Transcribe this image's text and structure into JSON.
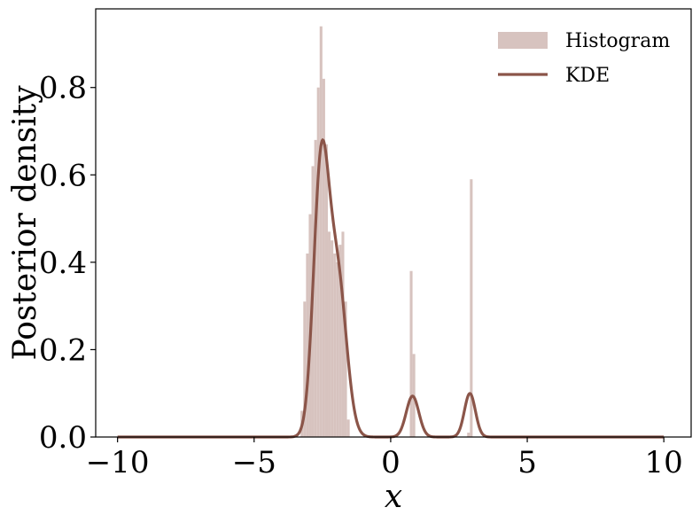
{
  "chart_data": {
    "type": "bar",
    "xlabel": "x",
    "ylabel": "Posterior density",
    "xlim": [
      -10.8,
      11.0
    ],
    "ylim": [
      0.0,
      0.98
    ],
    "xticks": [
      {
        "value": -10,
        "label": "−10"
      },
      {
        "value": -5,
        "label": "−5"
      },
      {
        "value": 0,
        "label": "0"
      },
      {
        "value": 5,
        "label": "5"
      },
      {
        "value": 10,
        "label": "10"
      }
    ],
    "yticks": [
      {
        "value": 0.0,
        "label": "0.0"
      },
      {
        "value": 0.2,
        "label": "0.2"
      },
      {
        "value": 0.4,
        "label": "0.4"
      },
      {
        "value": 0.6,
        "label": "0.6"
      },
      {
        "value": 0.8,
        "label": "0.8"
      }
    ],
    "grid": false,
    "legend_position": "top-right",
    "series": [
      {
        "name": "Histogram",
        "kind": "histogram",
        "color": "#d7c3bf",
        "bin_width": 0.1,
        "bins": [
          {
            "x": -3.3,
            "y": 0.06
          },
          {
            "x": -3.2,
            "y": 0.31
          },
          {
            "x": -3.1,
            "y": 0.42
          },
          {
            "x": -3.0,
            "y": 0.51
          },
          {
            "x": -2.9,
            "y": 0.62
          },
          {
            "x": -2.8,
            "y": 0.68
          },
          {
            "x": -2.7,
            "y": 0.8
          },
          {
            "x": -2.6,
            "y": 0.94
          },
          {
            "x": -2.5,
            "y": 0.82
          },
          {
            "x": -2.4,
            "y": 0.67
          },
          {
            "x": -2.3,
            "y": 0.47
          },
          {
            "x": -2.2,
            "y": 0.45
          },
          {
            "x": -2.1,
            "y": 0.42
          },
          {
            "x": -2.0,
            "y": 0.4
          },
          {
            "x": -1.9,
            "y": 0.44
          },
          {
            "x": -1.8,
            "y": 0.47
          },
          {
            "x": -1.7,
            "y": 0.31
          },
          {
            "x": -1.6,
            "y": 0.04
          },
          {
            "x": 0.7,
            "y": 0.38
          },
          {
            "x": 0.8,
            "y": 0.19
          },
          {
            "x": 2.8,
            "y": 0.01
          },
          {
            "x": 2.9,
            "y": 0.59
          }
        ]
      },
      {
        "name": "KDE",
        "kind": "line",
        "color": "#8b5549",
        "components": [
          {
            "mean": -2.55,
            "sd": 0.28,
            "weight": 0.42
          },
          {
            "mean": -1.95,
            "sd": 0.33,
            "weight": 0.3
          },
          {
            "mean": 0.8,
            "sd": 0.23,
            "weight": 0.054
          },
          {
            "mean": 2.9,
            "sd": 0.2,
            "weight": 0.05
          }
        ],
        "x_range": [
          -10,
          10
        ]
      }
    ]
  }
}
